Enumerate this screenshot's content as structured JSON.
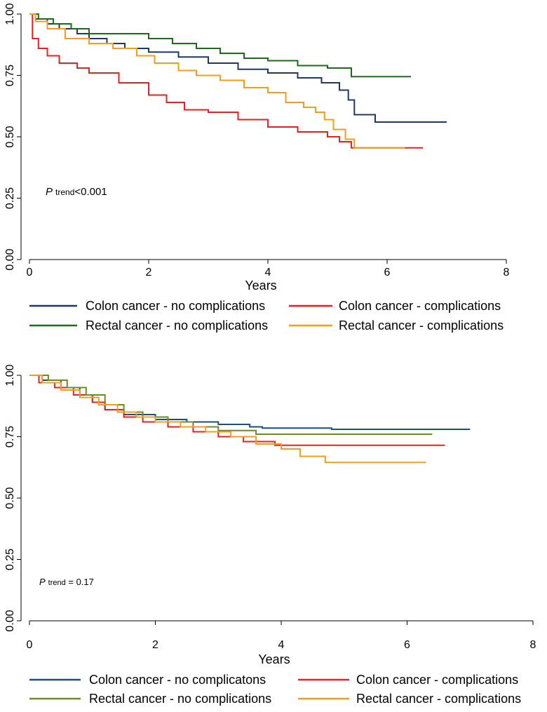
{
  "chart_data": [
    {
      "type": "line",
      "step": true,
      "xlabel": "Years",
      "ylabel": "",
      "xlim": [
        0,
        8
      ],
      "ylim": [
        0,
        1
      ],
      "xticks": [
        "0",
        "2",
        "4",
        "6",
        "8"
      ],
      "yticks": [
        "0.00",
        "0.25",
        "0.50",
        "0.75",
        "1.00"
      ],
      "annotation": {
        "p": "P",
        "sub": "trend",
        "rest": "<0.001"
      },
      "series": [
        {
          "name": "Colon cancer - no complications",
          "color": "#1f3864",
          "x": [
            0,
            0.1,
            0.3,
            0.5,
            0.8,
            1.0,
            1.3,
            1.6,
            2.0,
            2.5,
            3.0,
            3.5,
            4.0,
            4.5,
            4.9,
            5.2,
            5.35,
            5.45,
            5.8,
            7.0
          ],
          "y": [
            1.0,
            0.98,
            0.96,
            0.94,
            0.92,
            0.9,
            0.88,
            0.86,
            0.845,
            0.825,
            0.8,
            0.775,
            0.76,
            0.74,
            0.72,
            0.69,
            0.65,
            0.59,
            0.56,
            0.56
          ]
        },
        {
          "name": "Colon cancer - complications",
          "color": "#e8221e",
          "x": [
            0,
            0.05,
            0.15,
            0.3,
            0.5,
            0.8,
            1.0,
            1.5,
            2.0,
            2.3,
            2.6,
            3.0,
            3.5,
            4.0,
            4.5,
            5.0,
            5.2,
            5.4,
            6.6
          ],
          "y": [
            1.0,
            0.9,
            0.86,
            0.83,
            0.8,
            0.78,
            0.76,
            0.72,
            0.67,
            0.64,
            0.61,
            0.6,
            0.57,
            0.54,
            0.52,
            0.5,
            0.48,
            0.455,
            0.455
          ]
        },
        {
          "name": "Rectal cancer - no complications",
          "color": "#1e6b1e",
          "x": [
            0,
            0.15,
            0.4,
            0.7,
            1.0,
            1.6,
            2.0,
            2.4,
            2.8,
            3.2,
            3.6,
            4.0,
            4.5,
            5.0,
            5.4,
            6.4
          ],
          "y": [
            1.0,
            0.98,
            0.96,
            0.94,
            0.92,
            0.92,
            0.9,
            0.88,
            0.86,
            0.84,
            0.82,
            0.81,
            0.79,
            0.78,
            0.745,
            0.745
          ]
        },
        {
          "name": "Rectal cancer - complications",
          "color": "#f39c1e",
          "x": [
            0,
            0.1,
            0.3,
            0.6,
            1.0,
            1.4,
            1.8,
            2.1,
            2.5,
            2.8,
            3.2,
            3.6,
            4.0,
            4.3,
            4.6,
            4.8,
            4.95,
            5.1,
            5.3,
            5.45,
            6.3
          ],
          "y": [
            1.0,
            0.97,
            0.94,
            0.9,
            0.88,
            0.86,
            0.83,
            0.8,
            0.77,
            0.75,
            0.73,
            0.7,
            0.68,
            0.64,
            0.62,
            0.6,
            0.57,
            0.53,
            0.49,
            0.455,
            0.455
          ]
        }
      ]
    },
    {
      "type": "line",
      "step": true,
      "xlabel": "Years",
      "ylabel": "",
      "xlim": [
        0,
        8
      ],
      "ylim": [
        0,
        1
      ],
      "xticks": [
        "0",
        "2",
        "4",
        "6",
        "8"
      ],
      "yticks": [
        "0.00",
        "0.25",
        "0.50",
        "0.75",
        "1.00"
      ],
      "annotation": {
        "p": "P",
        "sub": "trend",
        "rest": " = 0.17"
      },
      "series": [
        {
          "name": "Colon cancer - no complicatons",
          "color": "#1f4e79",
          "x": [
            0,
            0.2,
            0.5,
            0.8,
            1.0,
            1.2,
            1.5,
            2.0,
            2.5,
            3.0,
            3.5,
            3.7,
            4.8,
            7.0
          ],
          "y": [
            1.0,
            0.98,
            0.95,
            0.92,
            0.89,
            0.86,
            0.84,
            0.82,
            0.81,
            0.8,
            0.79,
            0.785,
            0.78,
            0.78
          ]
        },
        {
          "name": "Colon cancer - complications",
          "color": "#e8221e",
          "x": [
            0,
            0.15,
            0.4,
            0.7,
            1.0,
            1.2,
            1.5,
            1.8,
            2.2,
            2.6,
            3.0,
            3.4,
            3.9,
            6.6
          ],
          "y": [
            1.0,
            0.97,
            0.95,
            0.92,
            0.89,
            0.86,
            0.83,
            0.81,
            0.79,
            0.77,
            0.75,
            0.73,
            0.715,
            0.715
          ]
        },
        {
          "name": "Rectal cancer - no complications",
          "color": "#6b8e23",
          "x": [
            0,
            0.3,
            0.6,
            0.9,
            1.2,
            1.5,
            1.8,
            2.2,
            2.6,
            3.0,
            3.6,
            6.4
          ],
          "y": [
            1.0,
            0.98,
            0.95,
            0.92,
            0.88,
            0.85,
            0.83,
            0.81,
            0.79,
            0.775,
            0.76,
            0.76
          ]
        },
        {
          "name": "Rectal cancer - complications",
          "color": "#f39c1e",
          "x": [
            0,
            0.2,
            0.5,
            0.8,
            1.1,
            1.4,
            1.7,
            2.0,
            2.4,
            2.8,
            3.2,
            3.6,
            4.0,
            4.3,
            4.7,
            6.3
          ],
          "y": [
            1.0,
            0.97,
            0.94,
            0.91,
            0.88,
            0.85,
            0.83,
            0.81,
            0.79,
            0.77,
            0.75,
            0.72,
            0.7,
            0.67,
            0.645,
            0.645
          ]
        }
      ]
    }
  ]
}
